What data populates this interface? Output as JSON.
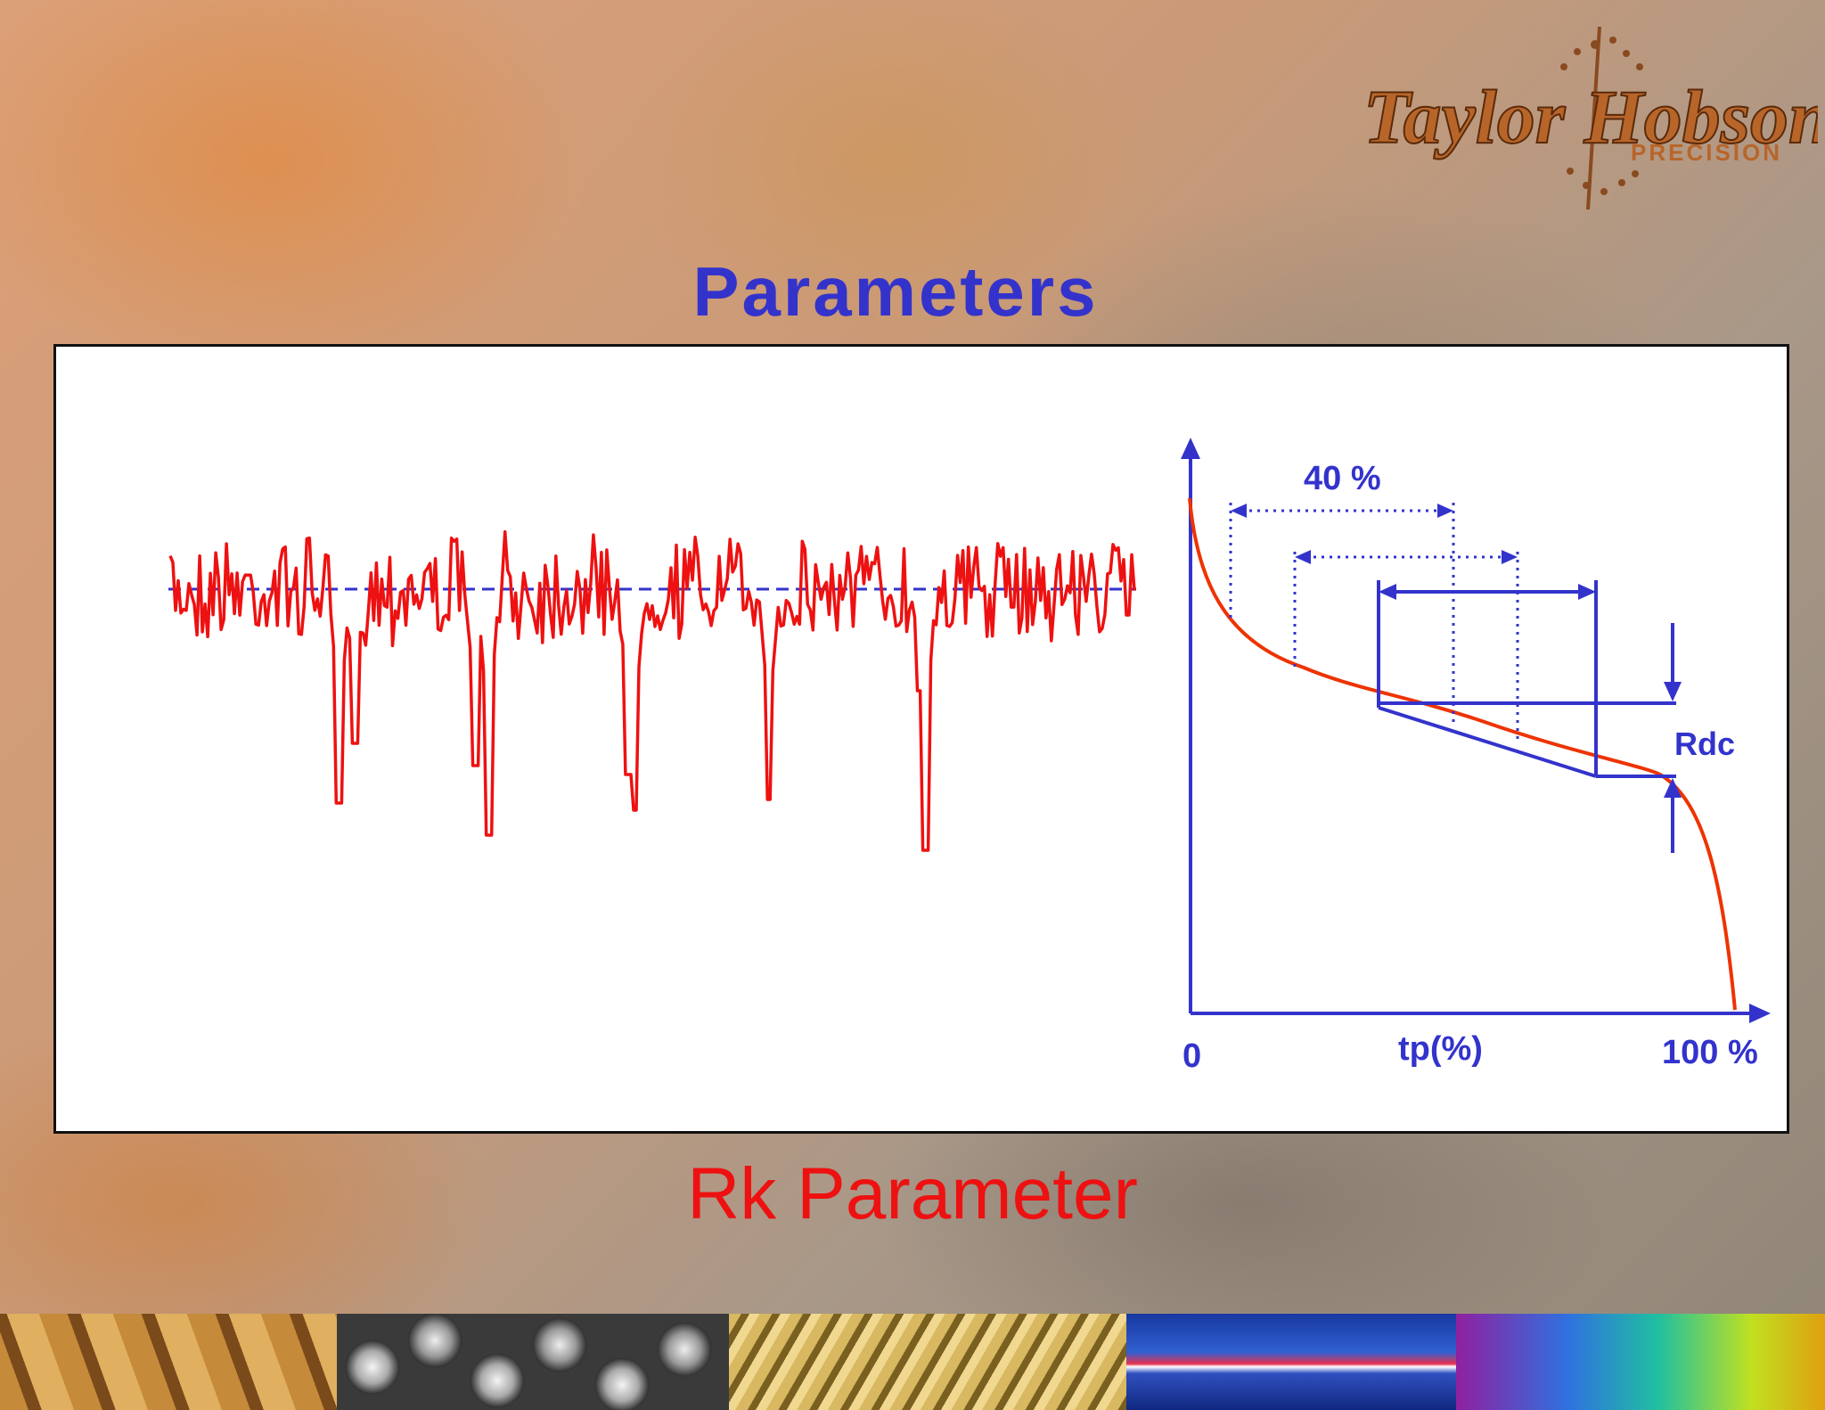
{
  "slide": {
    "title": "Parameters",
    "subtitle": "Rk Parameter"
  },
  "logo": {
    "name": "Taylor Hobson",
    "tagline": "PRECISION"
  },
  "bearing_curve": {
    "label_40": "40 %",
    "label_rdc": "Rdc",
    "x_axis_label": "tp(%)",
    "x_start": "0",
    "x_end": "100 %"
  },
  "colors": {
    "title": "#3333cc",
    "subtitle": "#ee1111",
    "profile_line": "#ee1111",
    "construction": "#3333cc",
    "curve": "#ee3300"
  },
  "icons": {
    "strip": [
      "wood-grain",
      "steel-balls",
      "gears",
      "blue-light",
      "rainbow-optics"
    ]
  }
}
